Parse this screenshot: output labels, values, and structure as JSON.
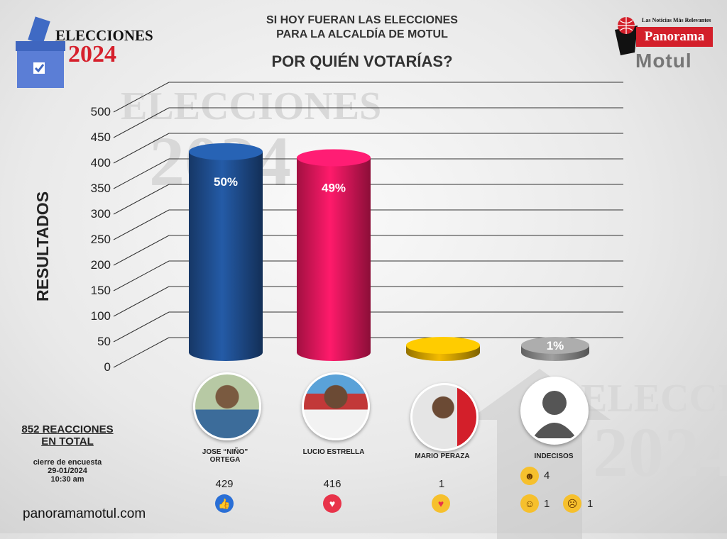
{
  "logo": {
    "title": "ELECCIONES",
    "year": "2024"
  },
  "brand": {
    "tagline": "Las Noticias Más Relevantes",
    "name": "Panorama",
    "city": "Motul"
  },
  "header": {
    "line1": "SI HOY FUERAN LAS ELECCIONES",
    "line2": "PARA LA ALCALDÍA DE MOTUL",
    "question": "POR QUIÉN VOTARÍAS?"
  },
  "watermark": {
    "word": "ELECCIONES",
    "year": "2024"
  },
  "summary": {
    "total": "852 REACCIONES",
    "total2": "EN TOTAL",
    "closing": "cierre de encuesta",
    "date": "29-01/2024",
    "time": "10:30 am"
  },
  "site": "panoramamotul.com",
  "chart_data": {
    "type": "bar",
    "ylabel": "RESULTADOS",
    "ylim": [
      0,
      500
    ],
    "yticks": [
      "0",
      "50",
      "100",
      "150",
      "200",
      "250",
      "300",
      "350",
      "400",
      "450",
      "500"
    ],
    "categories": [
      "JOSE “NIÑO” ORTEGA",
      "LUCIO ESTRELLA",
      "MARIO PERAZA",
      "INDECISOS"
    ],
    "values": [
      429,
      416,
      1,
      6
    ],
    "data_labels": [
      "50%",
      "49%",
      "",
      "1%"
    ],
    "colors": [
      "#1f4f91",
      "#e8175d",
      "#d4a300",
      "#8a8a8a"
    ]
  },
  "candidates": [
    {
      "name1": "JOSE “NIÑO”",
      "name2": "ORTEGA",
      "count": "429",
      "reaction": "like-icon",
      "color": "#2a6fd6"
    },
    {
      "name1": "LUCIO ESTRELLA",
      "name2": "",
      "count": "416",
      "reaction": "heart-icon",
      "color": "#e8334a"
    },
    {
      "name1": "MARIO PERAZA",
      "name2": "",
      "count": "1",
      "reaction": "care-icon",
      "color": "#f6c02d"
    },
    {
      "name1": "INDECISOS",
      "name2": "",
      "count": "",
      "reaction": "",
      "color": "#f6c02d"
    }
  ],
  "undecided_reactions": [
    {
      "icon": "haha-icon",
      "count": "4"
    },
    {
      "icon": "wow-icon",
      "count": "1"
    },
    {
      "icon": "sad-icon",
      "count": "1"
    }
  ]
}
